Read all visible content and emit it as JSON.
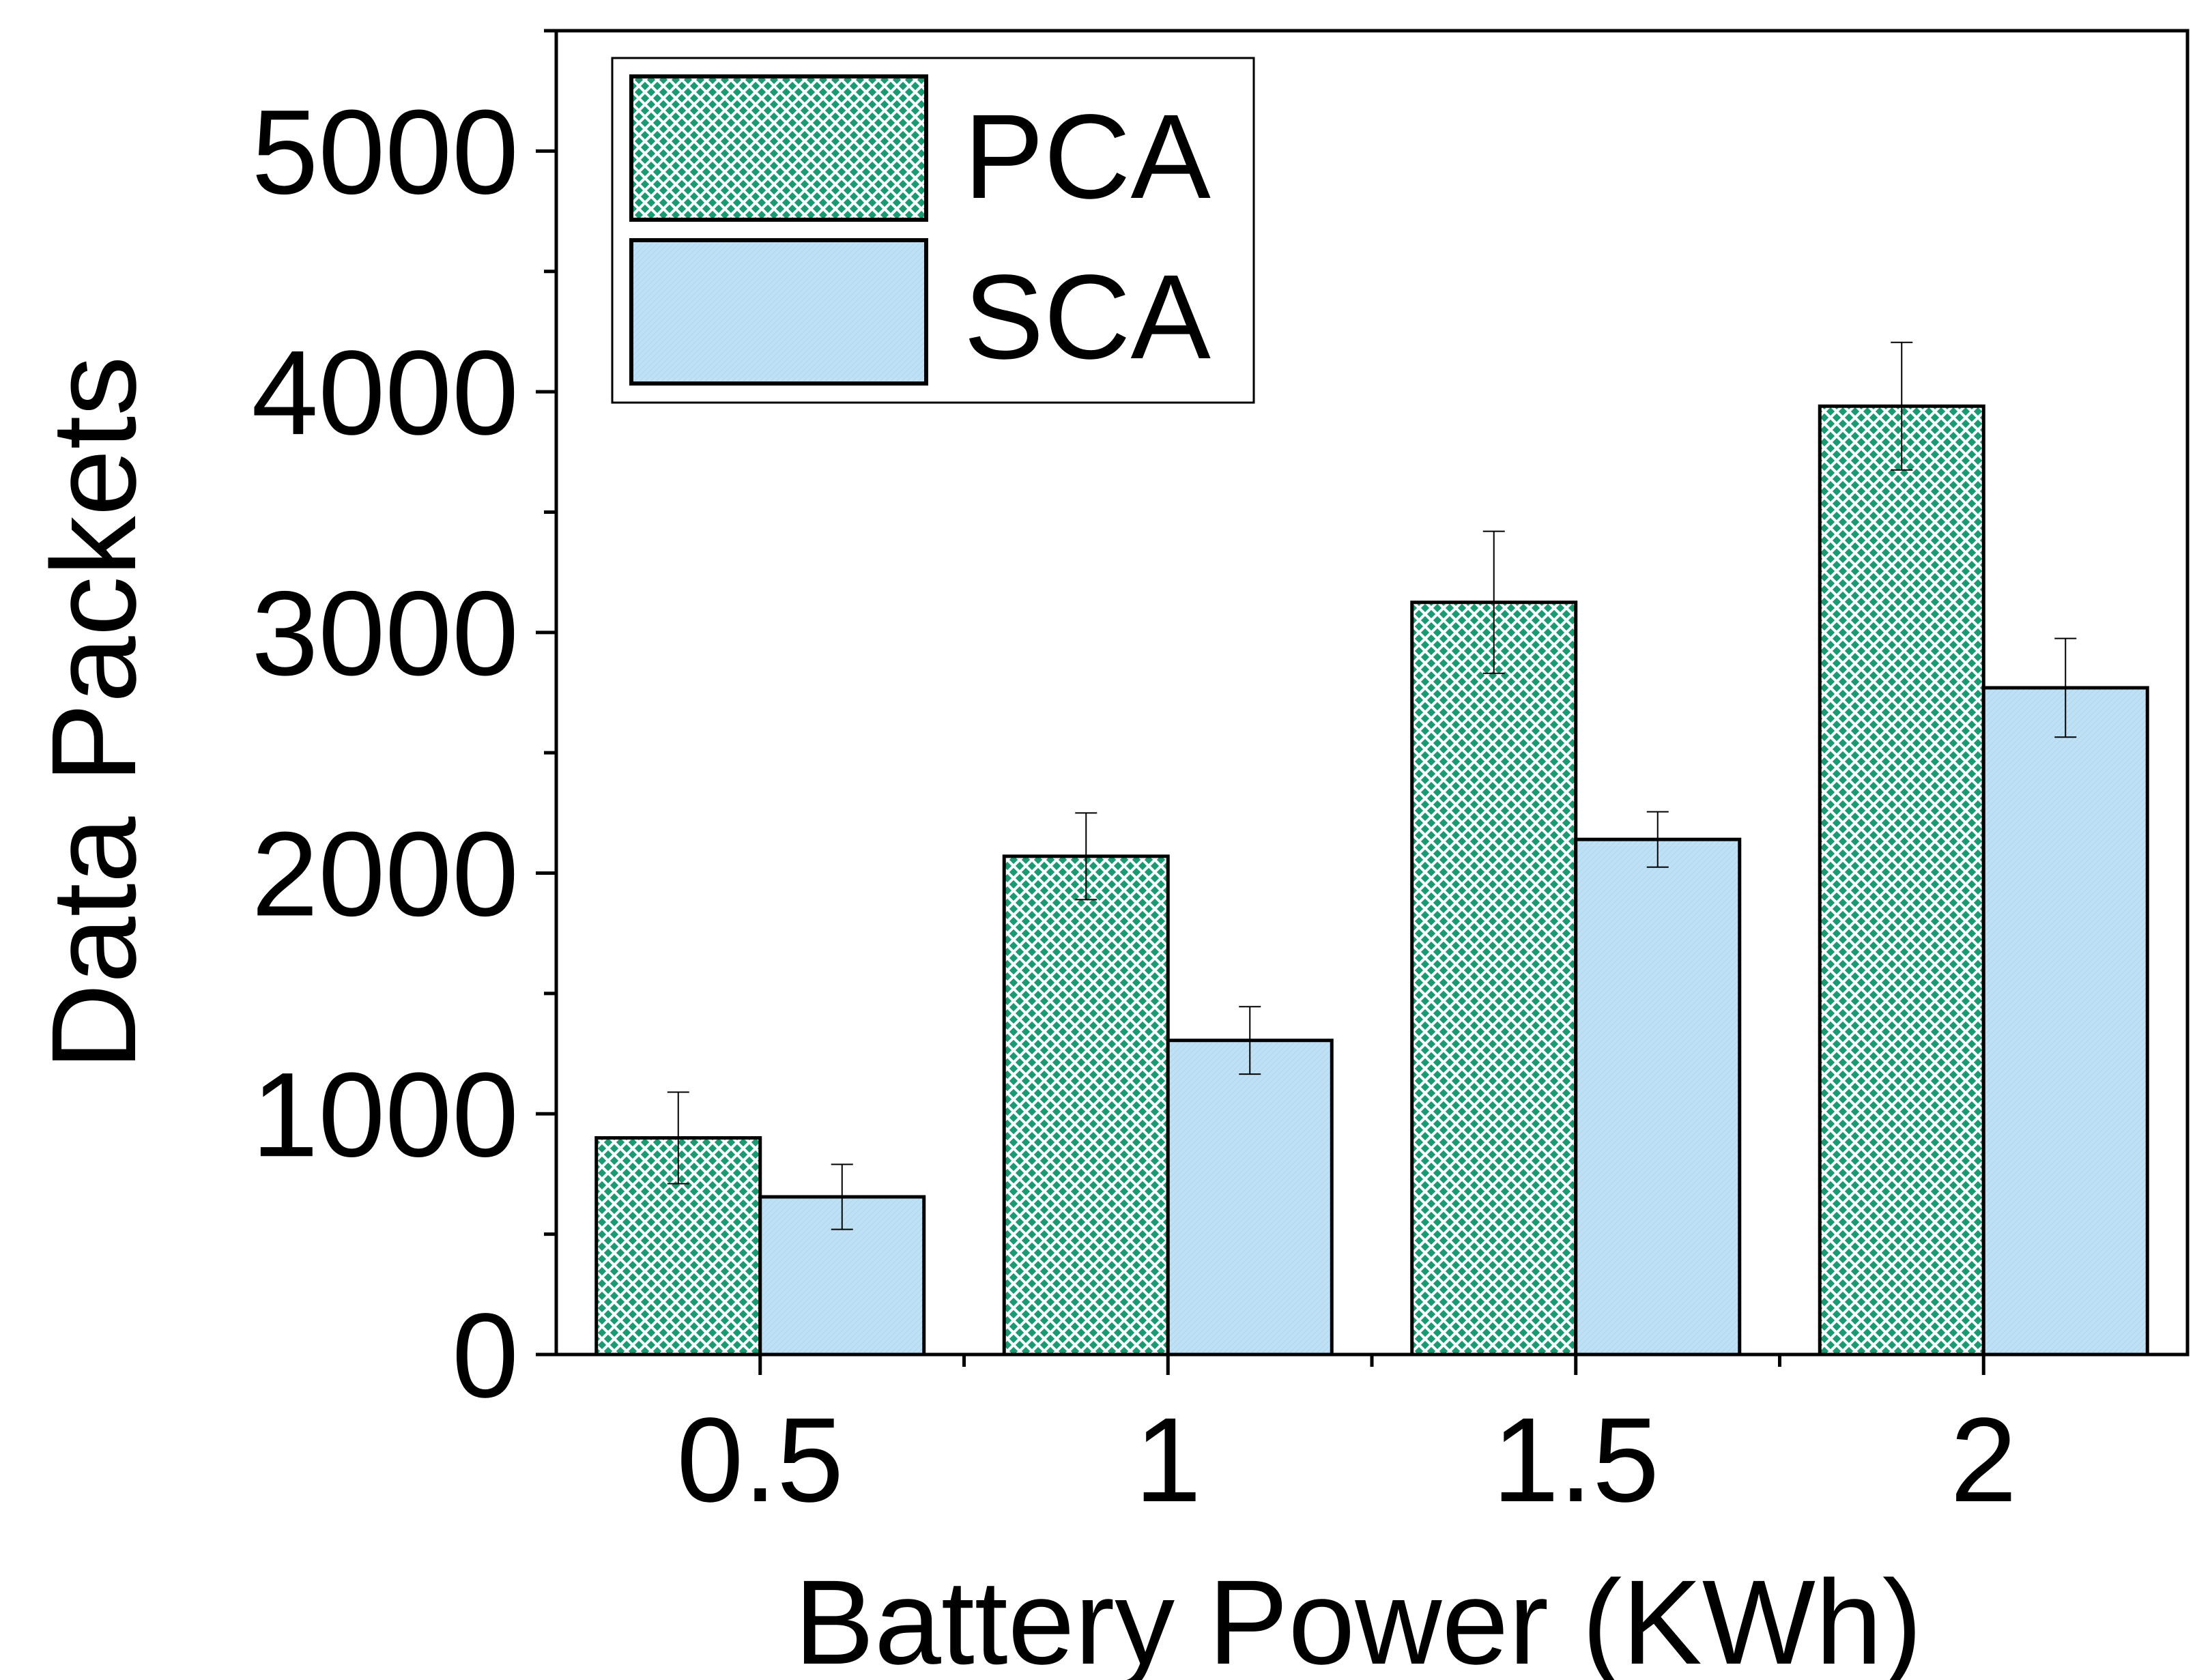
{
  "chart_data": {
    "type": "bar",
    "xlabel": "Battery Power (KWh)",
    "ylabel": "Data Packets",
    "ylim": [
      0,
      5500
    ],
    "yticks": [
      0,
      1000,
      2000,
      3000,
      4000,
      5000
    ],
    "categories": [
      "0.5",
      "1",
      "1.5",
      "2"
    ],
    "series": [
      {
        "name": "PCA",
        "color": "#1a9a72",
        "pattern": "crosshatch",
        "values": [
          900,
          2070,
          3125,
          3940
        ],
        "errors": [
          190,
          180,
          295,
          265
        ]
      },
      {
        "name": "SCA",
        "color": "#bfe1f5",
        "pattern": "solid",
        "values": [
          655,
          1305,
          2140,
          2770
        ],
        "errors": [
          135,
          140,
          115,
          205
        ]
      }
    ],
    "legend": "top-left",
    "grid": false
  }
}
